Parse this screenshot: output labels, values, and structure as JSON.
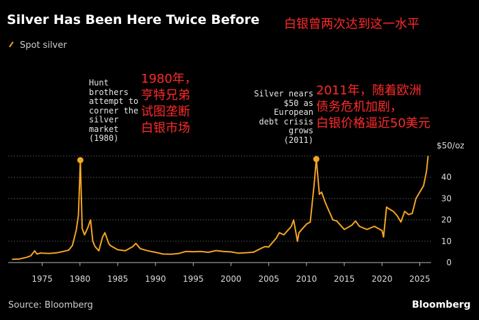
{
  "header": {
    "title": "Silver Has Been Here Twice Before",
    "title_cn": "白银曾两次达到这一水平"
  },
  "legend": {
    "label": "Spot silver"
  },
  "annotations": {
    "a1980": [
      "Hunt",
      "brothers",
      "attempt to",
      "corner the",
      "silver",
      "market",
      "(1980)"
    ],
    "a1980_cn": [
      "1980年，",
      "亨特兄弟",
      "试图垄断",
      "白银市场"
    ],
    "a2011": [
      "Silver nears",
      "$50 as",
      "European",
      "debt crisis",
      "grows",
      "(2011)"
    ],
    "a2011_cn": [
      "2011年，随着欧洲",
      "债务危机加剧，",
      "白银价格逼近50美元"
    ]
  },
  "unit_label": "$50/oz",
  "footer": {
    "source": "Source: Bloomberg",
    "brand": "Bloomberg"
  },
  "colors": {
    "series": "#f5a623",
    "background": "#000000",
    "grid": "#444444",
    "annotation_cn": "#ff2a2a"
  },
  "chart_data": {
    "type": "line",
    "title": "Silver Has Been Here Twice Before",
    "xlabel": "",
    "ylabel": "",
    "xlim": [
      1970.5,
      2026.5
    ],
    "ylim": [
      0,
      50
    ],
    "x_ticks": [
      1975,
      1980,
      1985,
      1990,
      1995,
      2000,
      2005,
      2010,
      2015,
      2020,
      2025
    ],
    "y_ticks": [
      0,
      10,
      20,
      30,
      40
    ],
    "y_tick_labels": [
      "0",
      "10",
      "20",
      "30",
      "40"
    ],
    "grid": "horizontal",
    "legend_position": "top-left",
    "series": [
      {
        "name": "Spot silver",
        "x": [
          1971,
          1972,
          1973,
          1973.5,
          1974,
          1974.3,
          1974.8,
          1975,
          1976,
          1977,
          1978,
          1978.5,
          1979,
          1979.5,
          1979.8,
          1980.05,
          1980.3,
          1980.6,
          1981,
          1981.4,
          1981.7,
          1982,
          1982.5,
          1983,
          1983.3,
          1983.8,
          1984,
          1985,
          1986,
          1987,
          1987.4,
          1988,
          1989,
          1990,
          1991,
          1992,
          1993,
          1994,
          1995,
          1996,
          1997,
          1998,
          1999,
          2000,
          2001,
          2002,
          2003,
          2004,
          2004.5,
          2005,
          2006,
          2006.4,
          2007,
          2008,
          2008.3,
          2008.8,
          2009,
          2010,
          2010.5,
          2011,
          2011.3,
          2011.7,
          2012,
          2012.5,
          2013,
          2013.5,
          2014,
          2015,
          2016,
          2016.5,
          2017,
          2018,
          2019,
          2020,
          2020.2,
          2020.6,
          2021,
          2021.5,
          2022,
          2022.5,
          2023,
          2023.5,
          2024,
          2024.5,
          2025,
          2025.5,
          2025.9,
          2026.1
        ],
        "y": [
          1.5,
          1.7,
          2.5,
          3.2,
          5.5,
          4.0,
          4.5,
          4.4,
          4.3,
          4.6,
          5.4,
          5.8,
          8.0,
          15.0,
          22.0,
          48.0,
          16.0,
          13.0,
          16.0,
          20.0,
          10.0,
          7.5,
          5.5,
          12.0,
          14.0,
          9.0,
          8.0,
          6.0,
          5.5,
          7.5,
          9.0,
          6.5,
          5.5,
          4.8,
          4.0,
          3.9,
          4.2,
          5.2,
          5.1,
          5.2,
          4.8,
          5.6,
          5.2,
          5.0,
          4.4,
          4.6,
          4.9,
          6.7,
          7.5,
          7.3,
          11.5,
          14.0,
          13.0,
          17.0,
          20.0,
          10.0,
          14.0,
          18.0,
          19.0,
          36.0,
          48.5,
          32.0,
          33.0,
          28.0,
          24.0,
          20.0,
          19.5,
          15.5,
          17.5,
          19.5,
          17.0,
          15.5,
          17.0,
          15.0,
          12.0,
          26.0,
          25.0,
          24.0,
          22.0,
          19.0,
          24.0,
          22.5,
          23.0,
          30.0,
          33.0,
          36.0,
          43.0,
          50.0
        ]
      }
    ],
    "markers": [
      {
        "x": 1980.05,
        "y": 48.0
      },
      {
        "x": 2011.3,
        "y": 48.5
      }
    ]
  }
}
